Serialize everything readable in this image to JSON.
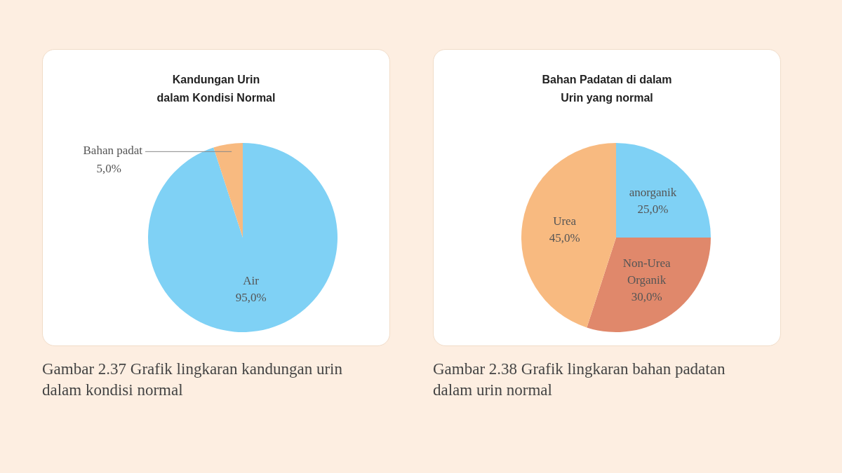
{
  "chart_data": [
    {
      "type": "pie",
      "title": "Kandungan Urin\ndalam Kondisi Normal",
      "categories": [
        "Air",
        "Bahan padat"
      ],
      "values": [
        95,
        5
      ],
      "colors": [
        "#7fd1f5",
        "#f8ba80"
      ],
      "value_labels": [
        "95,0%",
        "5,0%"
      ],
      "annotations": [
        "Gambar 2.37 Grafik lingkaran kandungan urin dalam kondisi normal"
      ]
    },
    {
      "type": "pie",
      "title": "Bahan Padatan di dalam\nUrin yang normal",
      "categories": [
        "anorganik",
        "Non-Urea Organik",
        "Urea"
      ],
      "values": [
        25,
        30,
        45
      ],
      "colors": [
        "#7fd1f5",
        "#e0886b",
        "#f8ba80"
      ],
      "value_labels": [
        "25,0%",
        "30,0%",
        "45,0%"
      ],
      "annotations": [
        "Gambar 2.38 Grafik lingkaran bahan padatan dalam urin normal"
      ]
    }
  ]
}
